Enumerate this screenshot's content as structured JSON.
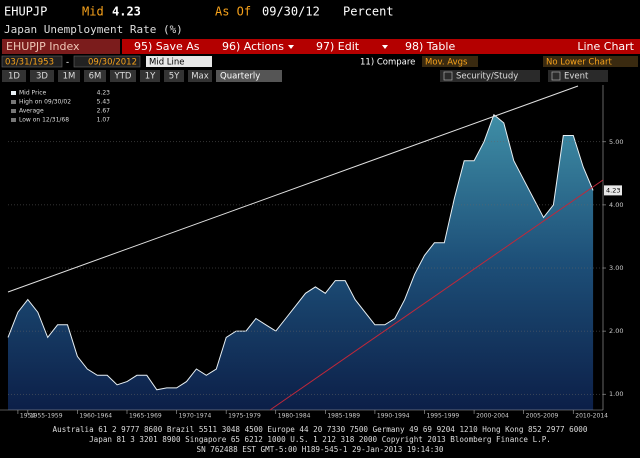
{
  "header": {
    "ticker": "EHUPJP",
    "field": "Mid",
    "value": 4.23,
    "as_of_label": "As Of",
    "date": "09/30/12",
    "units": "Percent",
    "title": "Japan Unemployment Rate (%)"
  },
  "toolbar": {
    "security": "EHUPJP Index",
    "buttons": [
      "95) Save As",
      "96) Actions",
      "97) Edit",
      "98) Table"
    ],
    "chart_type": "Line Chart"
  },
  "range": {
    "start": "03/31/1953",
    "separator": "-",
    "end": "09/30/2012",
    "style": "Mid Line",
    "compare": "11) Compare",
    "moving_averages": "Mov. Avgs",
    "lower_chart": "No Lower Chart"
  },
  "periods": [
    "1D",
    "3D",
    "1M",
    "6M",
    "YTD",
    "1Y",
    "5Y",
    "Max"
  ],
  "frequency": "Quarterly",
  "tools": [
    "Security/Study",
    "Event"
  ],
  "chart_data": {
    "type": "area",
    "legend": [
      {
        "label": "Mid Price",
        "value": 4.23
      },
      {
        "label": "High on 09/30/02",
        "value": 5.43
      },
      {
        "label": "Average",
        "value": 2.67
      },
      {
        "label": "Low on 12/31/68",
        "value": 1.07
      }
    ],
    "x": [
      1953,
      1954,
      1955,
      1956,
      1957,
      1958,
      1959,
      1960,
      1961,
      1962,
      1963,
      1964,
      1965,
      1966,
      1967,
      1968,
      1969,
      1970,
      1971,
      1972,
      1973,
      1974,
      1975,
      1976,
      1977,
      1978,
      1979,
      1980,
      1981,
      1982,
      1983,
      1984,
      1985,
      1986,
      1987,
      1988,
      1989,
      1990,
      1991,
      1992,
      1993,
      1994,
      1995,
      1996,
      1997,
      1998,
      1999,
      2000,
      2001,
      2002,
      2003,
      2004,
      2005,
      2006,
      2007,
      2008,
      2009,
      2010,
      2011,
      2012
    ],
    "values": [
      1.9,
      2.3,
      2.5,
      2.3,
      1.9,
      2.1,
      2.1,
      1.6,
      1.4,
      1.3,
      1.3,
      1.15,
      1.2,
      1.3,
      1.3,
      1.07,
      1.1,
      1.1,
      1.2,
      1.4,
      1.3,
      1.4,
      1.9,
      2.0,
      2.0,
      2.2,
      2.1,
      2.0,
      2.2,
      2.4,
      2.6,
      2.7,
      2.6,
      2.8,
      2.8,
      2.5,
      2.3,
      2.1,
      2.1,
      2.2,
      2.5,
      2.9,
      3.2,
      3.4,
      3.4,
      4.1,
      4.7,
      4.7,
      5.0,
      5.43,
      5.3,
      4.7,
      4.4,
      4.1,
      3.8,
      4.0,
      5.1,
      5.1,
      4.6,
      4.23
    ],
    "color": "#e8f0f4",
    "xlim": [
      1953,
      2013
    ],
    "ylim": [
      0.75,
      5.9
    ],
    "xticks": [
      1954,
      {
        "value": 1955,
        "label": "1955-1959"
      },
      {
        "value": 1960,
        "label": "1960-1964"
      },
      {
        "value": 1965,
        "label": "1965-1969"
      },
      {
        "value": 1970,
        "label": "1970-1974"
      },
      {
        "value": 1975,
        "label": "1975-1979"
      },
      {
        "value": 1980,
        "label": "1980-1984"
      },
      {
        "value": 1985,
        "label": "1985-1989"
      },
      {
        "value": 1990,
        "label": "1990-1994"
      },
      {
        "value": 1995,
        "label": "1995-1999"
      },
      {
        "value": 2000,
        "label": "2000-2004"
      },
      {
        "value": 2005,
        "label": "2005-2009"
      },
      {
        "value": 2010,
        "label": "2010-2014"
      }
    ],
    "yticks": [
      {
        "value": 1,
        "label": "1.00"
      },
      {
        "value": 2,
        "label": "2.00"
      },
      {
        "value": 3,
        "label": "3.00"
      },
      {
        "value": 4,
        "label": "4.00"
      },
      {
        "value": 5,
        "label": "5.00"
      }
    ],
    "grid": true
  },
  "footer": [
    "Australia 61 2 9777 8600 Brazil 5511 3048 4500 Europe 44 20 7330 7500 Germany 49 69 9204 1210 Hong Kong 852 2977 6000",
    "Japan 81 3 3201 8900         Singapore 65 6212 1000         U.S. 1 212 318 2000         Copyright 2013 Bloomberg Finance L.P.",
    "SN 762488 EST  GMT-5:00 H189-545-1 29-Jan-2013 19:14:30"
  ]
}
